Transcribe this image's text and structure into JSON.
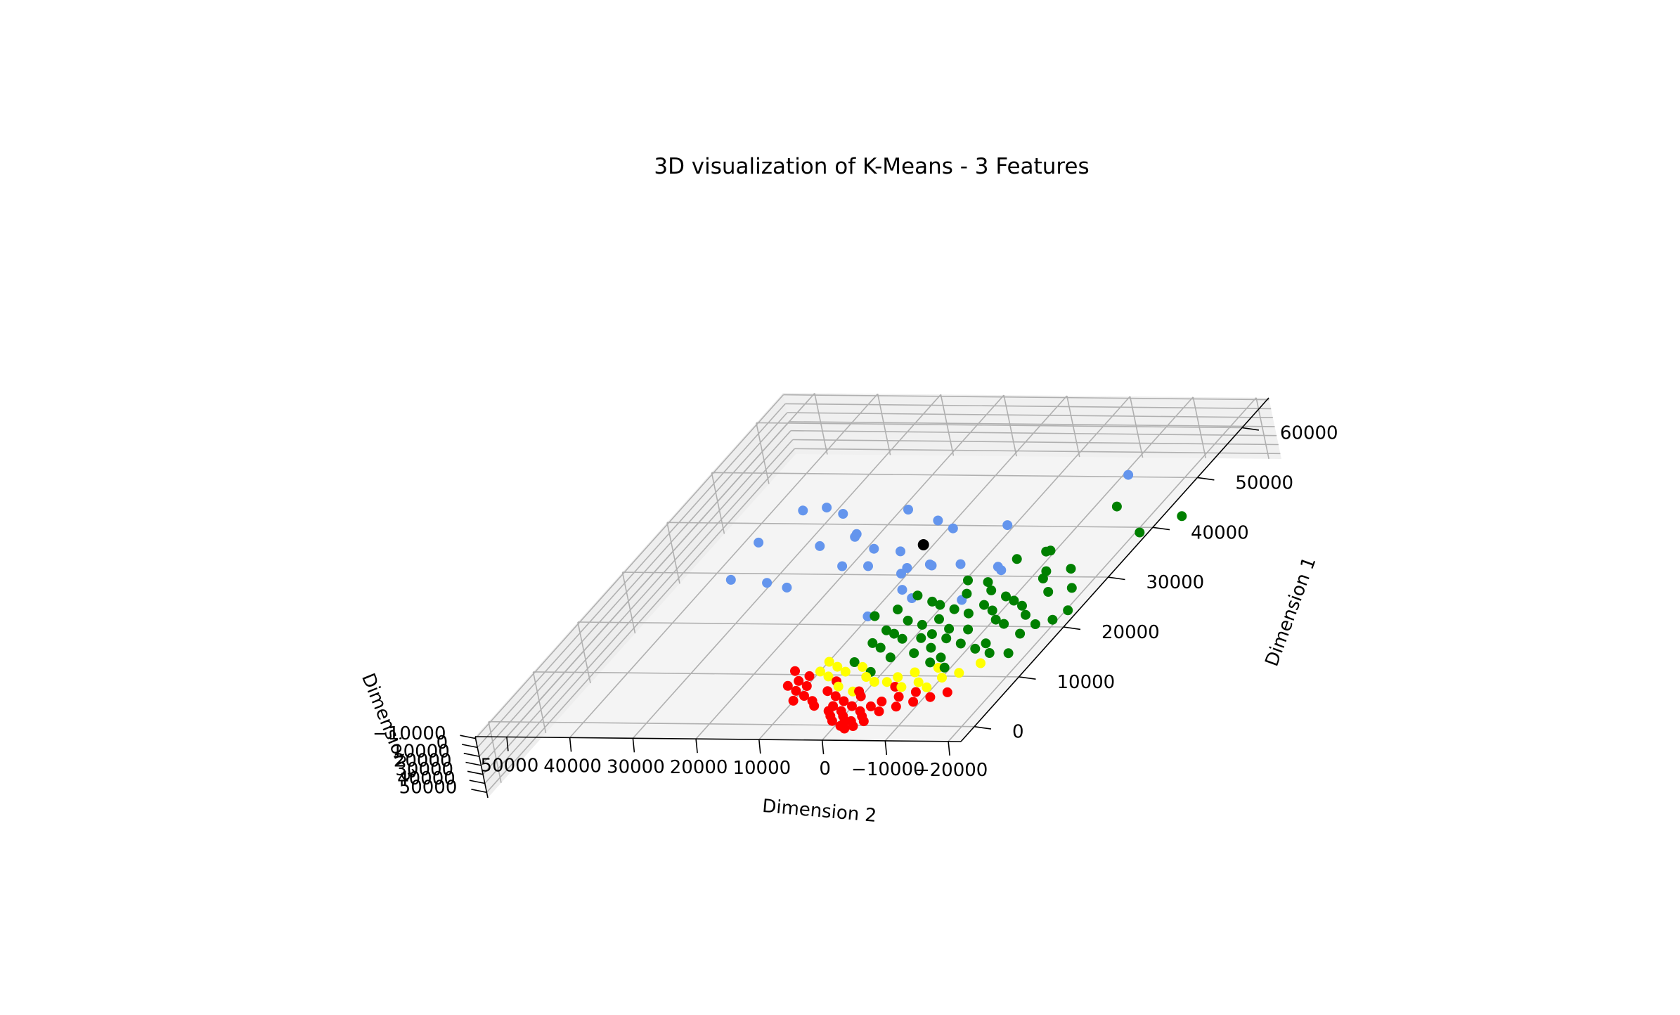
{
  "chart_data": {
    "type": "scatter",
    "projection": "3d",
    "title": "3D visualization of K-Means - 3 Features",
    "xlabel": "Dimension 1",
    "ylabel": "Dimension 2",
    "zlabel": "Dimension 3",
    "x_ticks": [
      "0",
      "10000",
      "20000",
      "30000",
      "40000",
      "50000",
      "60000"
    ],
    "y_ticks": [
      "50000",
      "40000",
      "30000",
      "20000",
      "10000",
      "0",
      "−10000",
      "−20000"
    ],
    "z_ticks": [
      "50000",
      "40000",
      "30000",
      "20000",
      "10000",
      "0",
      "−10000"
    ],
    "xlim": [
      -3000,
      66000
    ],
    "ylim": [
      -22000,
      55000
    ],
    "zlim": [
      -12000,
      56000
    ],
    "grid": true,
    "legend": "none",
    "colors": {
      "cluster_red": "#ff0000",
      "cluster_yellow": "#ffff00",
      "cluster_green": "#008000",
      "cluster_blue": "#6495ed",
      "centroid": "#000000",
      "pane": "#f2f2f2",
      "grid": "#b0b0b0"
    },
    "series": [
      {
        "color": "#6495ed",
        "points": [
          [
            38000,
            45000,
            40000
          ],
          [
            45000,
            30000,
            30000
          ],
          [
            44000,
            35000,
            35000
          ],
          [
            49000,
            37000,
            20000
          ],
          [
            48000,
            40000,
            18000
          ],
          [
            46000,
            32000,
            10000
          ],
          [
            47000,
            18000,
            22000
          ],
          [
            46000,
            15000,
            25000
          ],
          [
            48000,
            8000,
            32000
          ],
          [
            41000,
            42000,
            15000
          ],
          [
            42000,
            27000,
            10000
          ],
          [
            40000,
            23000,
            15000
          ],
          [
            39000,
            18000,
            12000
          ],
          [
            38000,
            8000,
            20000
          ],
          [
            39000,
            3000,
            28000
          ],
          [
            37000,
            26000,
            18000
          ],
          [
            36000,
            21000,
            12000
          ],
          [
            35000,
            14000,
            8000
          ],
          [
            37000,
            12000,
            15000
          ],
          [
            36000,
            16000,
            20000
          ],
          [
            31000,
            12000,
            10000
          ],
          [
            33000,
            35000,
            15000
          ],
          [
            33000,
            32000,
            20000
          ],
          [
            29000,
            9000,
            8000
          ],
          [
            35000,
            10000,
            5000
          ],
          [
            57000,
            -5000,
            25000
          ],
          [
            26000,
            14000,
            12000
          ],
          [
            30000,
            2000,
            15000
          ],
          [
            36000,
            0,
            15000
          ],
          [
            50000,
            25000,
            27000
          ]
        ]
      },
      {
        "color": "#008000",
        "points": [
          [
            48000,
            -10000,
            10000
          ],
          [
            48000,
            -20000,
            20000
          ],
          [
            42000,
            -18000,
            5000
          ],
          [
            40000,
            -5000,
            15000
          ],
          [
            37000,
            -2000,
            8000
          ],
          [
            38000,
            -6000,
            5000
          ],
          [
            35000,
            -8000,
            10000
          ],
          [
            33000,
            3000,
            10000
          ],
          [
            30000,
            1000,
            8000
          ],
          [
            32000,
            -1000,
            6000
          ],
          [
            28000,
            5000,
            6000
          ],
          [
            30000,
            -3000,
            4000
          ],
          [
            29000,
            -6000,
            5000
          ],
          [
            27000,
            -10000,
            4000
          ],
          [
            25000,
            -12000,
            3000
          ],
          [
            26000,
            0,
            3000
          ],
          [
            27000,
            3000,
            4000
          ],
          [
            24000,
            6000,
            5000
          ],
          [
            22000,
            8000,
            5000
          ],
          [
            23000,
            3000,
            4000
          ],
          [
            21000,
            0,
            3000
          ],
          [
            20000,
            -3000,
            2000
          ],
          [
            19000,
            -6000,
            2000
          ],
          [
            18000,
            -9000,
            2000
          ],
          [
            17000,
            -12000,
            1000
          ],
          [
            22000,
            -5000,
            3000
          ],
          [
            24000,
            -8000,
            3000
          ],
          [
            26000,
            -6000,
            4000
          ],
          [
            25000,
            -3000,
            2000
          ],
          [
            20000,
            4000,
            3000
          ],
          [
            18000,
            6000,
            2000
          ],
          [
            16000,
            3000,
            1500
          ],
          [
            17000,
            0,
            2000
          ],
          [
            15000,
            -4000,
            1000
          ],
          [
            14000,
            -7000,
            1000
          ],
          [
            19000,
            -10000,
            1500
          ],
          [
            21000,
            -14000,
            1500
          ],
          [
            23000,
            -15000,
            2000
          ],
          [
            24000,
            -17000,
            2500
          ],
          [
            26000,
            -18000,
            3000
          ],
          [
            20000,
            1000,
            2000
          ],
          [
            22000,
            -2000,
            2500
          ],
          [
            18000,
            -2000,
            1500
          ],
          [
            16000,
            -5000,
            1000
          ],
          [
            24000,
            1000,
            3000
          ],
          [
            27000,
            -4000,
            3500
          ],
          [
            28000,
            -8000,
            4000
          ],
          [
            15000,
            8000,
            1500
          ],
          [
            13000,
            4000,
            1000
          ],
          [
            21000,
            6000,
            3000
          ],
          [
            19000,
            8000,
            2500
          ],
          [
            23000,
            -10000,
            2000
          ],
          [
            17000,
            -15000,
            1000
          ],
          [
            30000,
            -12000,
            5000
          ],
          [
            31000,
            -15000,
            6000
          ],
          [
            26000,
            9000,
            4000
          ],
          [
            29000,
            8000,
            5000
          ],
          [
            25000,
            12000,
            6000
          ],
          [
            33000,
            -9000,
            7000
          ],
          [
            35000,
            -12000,
            7000
          ]
        ]
      },
      {
        "color": "#ffff00",
        "points": [
          [
            12000,
            4000,
            1000
          ],
          [
            11000,
            2000,
            800
          ],
          [
            12000,
            -1000,
            900
          ],
          [
            10000,
            -3000,
            700
          ],
          [
            11000,
            -5000,
            800
          ],
          [
            12000,
            -8000,
            1000
          ],
          [
            13000,
            -10000,
            1100
          ],
          [
            14000,
            6000,
            1200
          ],
          [
            13000,
            8000,
            1100
          ],
          [
            12000,
            10000,
            1000
          ],
          [
            10000,
            7000,
            900
          ],
          [
            9000,
            4000,
            700
          ],
          [
            11000,
            0,
            800
          ],
          [
            13000,
            -3000,
            1000
          ],
          [
            14000,
            -6000,
            1200
          ],
          [
            15000,
            -12000,
            1300
          ],
          [
            14000,
            10000,
            1300
          ],
          [
            15000,
            12000,
            1400
          ],
          [
            13000,
            12000,
            1200
          ],
          [
            10000,
            -7000,
            800
          ]
        ]
      },
      {
        "color": "#ff0000",
        "points": [
          [
            9000,
            8000,
            500
          ],
          [
            8000,
            6000,
            400
          ],
          [
            7000,
            4000,
            300
          ],
          [
            6000,
            2000,
            200
          ],
          [
            5000,
            0,
            100
          ],
          [
            4000,
            -1000,
            100
          ],
          [
            3000,
            0,
            50
          ],
          [
            2000,
            1000,
            0
          ],
          [
            1500,
            0,
            0
          ],
          [
            5000,
            -3000,
            100
          ],
          [
            6000,
            -5000,
            200
          ],
          [
            7000,
            -7000,
            300
          ],
          [
            8000,
            -9000,
            400
          ],
          [
            9000,
            -11000,
            500
          ],
          [
            6000,
            5000,
            300
          ],
          [
            5000,
            3000,
            200
          ],
          [
            4000,
            2000,
            100
          ],
          [
            3000,
            -2000,
            50
          ],
          [
            7000,
            9000,
            400
          ],
          [
            8000,
            11000,
            500
          ],
          [
            9000,
            13000,
            600
          ],
          [
            10000,
            12000,
            700
          ],
          [
            8000,
            2000,
            300
          ],
          [
            7000,
            -2000,
            300
          ],
          [
            6000,
            -1000,
            200
          ],
          [
            5000,
            5000,
            200
          ],
          [
            4000,
            4000,
            150
          ],
          [
            3000,
            3000,
            100
          ],
          [
            9000,
            3000,
            400
          ],
          [
            10000,
            -2000,
            500
          ],
          [
            11000,
            8000,
            600
          ],
          [
            9000,
            -6000,
            500
          ],
          [
            8000,
            -4000,
            400
          ],
          [
            2000,
            -1000,
            0
          ],
          [
            3000,
            1000,
            0
          ],
          [
            6000,
            8000,
            300
          ],
          [
            11000,
            14000,
            700
          ],
          [
            10000,
            15000,
            700
          ],
          [
            12000,
            13000,
            800
          ],
          [
            7000,
            12000,
            400
          ],
          [
            13000,
            16000,
            900
          ]
        ]
      },
      {
        "color": "#000000",
        "points": [
          [
            40000,
            15000,
            10000
          ]
        ]
      }
    ]
  }
}
